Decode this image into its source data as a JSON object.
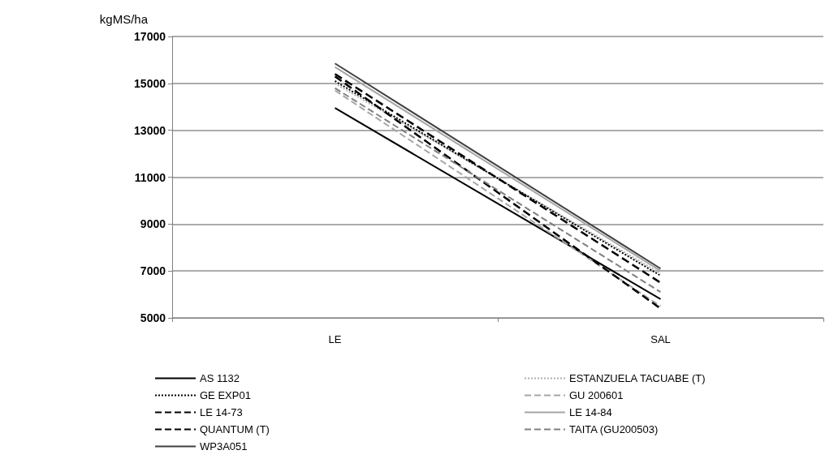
{
  "chart_data": {
    "type": "line",
    "ylabel": "kgMS/ha",
    "categories": [
      "LE",
      "SAL"
    ],
    "ylim": [
      5000,
      17000
    ],
    "yticks": [
      5000,
      7000,
      9000,
      11000,
      13000,
      15000,
      17000
    ],
    "grid": "y",
    "legend": "bottom",
    "marker": "none",
    "series": [
      {
        "name": "AS 1132",
        "color": "#000000",
        "line_style": "solid",
        "values": [
          13950,
          5800
        ]
      },
      {
        "name": "ESTANZUELA TACUABE (T)",
        "color": "#b0b0b0",
        "line_style": "dotted",
        "values": [
          15000,
          6900
        ]
      },
      {
        "name": "GE EXP01",
        "color": "#000000",
        "line_style": "dotted",
        "values": [
          15100,
          6800
        ]
      },
      {
        "name": "GU 200601",
        "color": "#a6a6a6",
        "line_style": "dashed",
        "values": [
          14700,
          5500
        ]
      },
      {
        "name": "LE 14-73",
        "color": "#000000",
        "line_style": "dashed",
        "values": [
          15300,
          5400
        ]
      },
      {
        "name": "LE 14-84",
        "color": "#a6a6a6",
        "line_style": "solid",
        "values": [
          15700,
          7000
        ]
      },
      {
        "name": "QUANTUM (T)",
        "color": "#000000",
        "line_style": "dashed",
        "values": [
          15400,
          6500
        ]
      },
      {
        "name": "TAITA (GU200503)",
        "color": "#808080",
        "line_style": "dashed",
        "values": [
          14800,
          6100
        ]
      },
      {
        "name": "WP3A051",
        "color": "#404040",
        "line_style": "solid",
        "values": [
          15850,
          7100
        ]
      }
    ]
  }
}
